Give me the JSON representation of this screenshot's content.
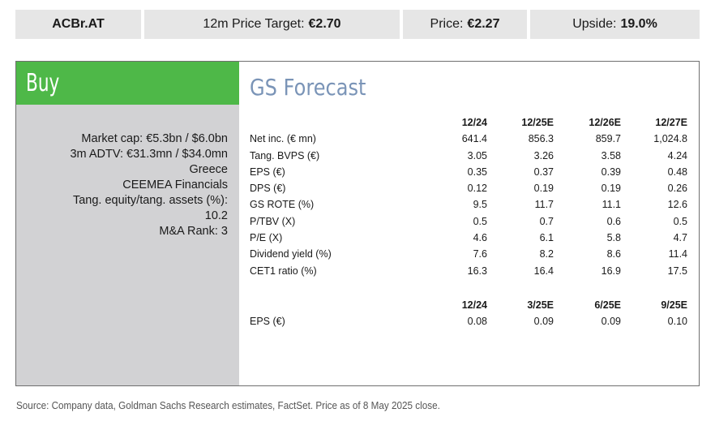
{
  "ribbon": {
    "ticker": "ACBr.AT",
    "price_target_label": "12m Price Target:",
    "price_target_value": "€2.70",
    "price_label": "Price:",
    "price_value": "€2.27",
    "upside_label": "Upside:",
    "upside_value": "19.0%"
  },
  "rating": "Buy",
  "stats": [
    "Market cap: €5.3bn / $6.0bn",
    "3m ADTV: €31.3mn / $34.0mn",
    "Greece",
    "CEEMEA Financials",
    "Tang. equity/tang. assets (%):",
    "10.2",
    "M&A Rank: 3"
  ],
  "forecast": {
    "title": "GS Forecast",
    "annual": {
      "columns": [
        "12/24",
        "12/25E",
        "12/26E",
        "12/27E"
      ],
      "rows": [
        {
          "label": "Net inc. (€ mn)",
          "values": [
            "641.4",
            "856.3",
            "859.7",
            "1,024.8"
          ]
        },
        {
          "label": "Tang. BVPS (€)",
          "values": [
            "3.05",
            "3.26",
            "3.58",
            "4.24"
          ]
        },
        {
          "label": "EPS (€)",
          "values": [
            "0.35",
            "0.37",
            "0.39",
            "0.48"
          ]
        },
        {
          "label": "DPS (€)",
          "values": [
            "0.12",
            "0.19",
            "0.19",
            "0.26"
          ]
        },
        {
          "label": "GS ROTE (%)",
          "values": [
            "9.5",
            "11.7",
            "11.1",
            "12.6"
          ]
        },
        {
          "label": "P/TBV (X)",
          "values": [
            "0.5",
            "0.7",
            "0.6",
            "0.5"
          ]
        },
        {
          "label": "P/E (X)",
          "values": [
            "4.6",
            "6.1",
            "5.8",
            "4.7"
          ]
        },
        {
          "label": "Dividend yield (%)",
          "values": [
            "7.6",
            "8.2",
            "8.6",
            "11.4"
          ]
        },
        {
          "label": "CET1 ratio (%)",
          "values": [
            "16.3",
            "16.4",
            "16.9",
            "17.5"
          ]
        }
      ]
    },
    "quarterly": {
      "columns": [
        "12/24",
        "3/25E",
        "6/25E",
        "9/25E"
      ],
      "rows": [
        {
          "label": "EPS (€)",
          "values": [
            "0.08",
            "0.09",
            "0.09",
            "0.10"
          ]
        }
      ]
    }
  },
  "source_note": "Source: Company data, Goldman Sachs Research estimates, FactSet. Price as of 8 May 2025 close."
}
